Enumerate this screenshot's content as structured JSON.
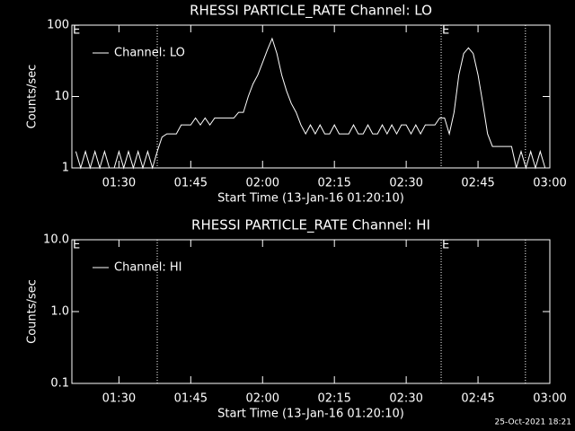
{
  "chart_data": [
    {
      "type": "line",
      "title": "RHESSI PARTICLE_RATE Channel: LO",
      "xlabel": "Start Time (13-Jan-16 01:20:10)",
      "ylabel": "Counts/sec",
      "log_y": true,
      "ylim": [
        1,
        100
      ],
      "yticks": [
        1,
        10,
        100
      ],
      "xlim": [
        80.17,
        180
      ],
      "xticks": [
        {
          "value": 90,
          "label": "01:30"
        },
        {
          "value": 105,
          "label": "01:45"
        },
        {
          "value": 120,
          "label": "02:00"
        },
        {
          "value": 135,
          "label": "02:15"
        },
        {
          "value": 150,
          "label": "02:30"
        },
        {
          "value": 165,
          "label": "02:45"
        },
        {
          "value": 180,
          "label": "03:00"
        }
      ],
      "vlines": [
        98.0,
        157.3,
        174.9
      ],
      "annotations": [
        {
          "x": 80.17,
          "text": "E"
        },
        {
          "x": 157.3,
          "text": "E"
        }
      ],
      "x": [
        81,
        82,
        83,
        84,
        85,
        86,
        87,
        88,
        89,
        90,
        91,
        92,
        93,
        94,
        95,
        96,
        97,
        98,
        99,
        100,
        101,
        102,
        103,
        104,
        105,
        106,
        107,
        108,
        109,
        110,
        111,
        112,
        113,
        114,
        115,
        116,
        117,
        118,
        119,
        120,
        121,
        122,
        123,
        124,
        125,
        126,
        127,
        128,
        129,
        130,
        131,
        132,
        133,
        134,
        135,
        136,
        137,
        138,
        139,
        140,
        141,
        142,
        143,
        144,
        145,
        146,
        147,
        148,
        149,
        150,
        151,
        152,
        153,
        154,
        155,
        156,
        157,
        158,
        159,
        160,
        161,
        162,
        163,
        164,
        165,
        166,
        167,
        168,
        169,
        170,
        171,
        172,
        173,
        174,
        175,
        176,
        177,
        178,
        179
      ],
      "series": [
        {
          "name": "Channel: LO",
          "color": "#ffffff",
          "values": [
            1.7,
            1,
            1.7,
            1,
            1.7,
            1,
            1.7,
            1,
            1,
            1.7,
            1,
            1.7,
            1,
            1.7,
            1,
            1.7,
            1,
            1.7,
            2.7,
            3,
            3,
            3,
            4,
            4,
            4,
            5,
            4,
            5,
            4,
            5,
            5,
            5,
            5,
            5,
            6,
            6,
            10,
            15,
            20,
            30,
            45,
            65,
            40,
            20,
            12,
            8,
            6,
            4,
            3,
            4,
            3,
            4,
            3,
            3,
            4,
            3,
            3,
            3,
            4,
            3,
            3,
            4,
            3,
            3,
            4,
            3,
            4,
            3,
            4,
            4,
            3,
            4,
            3,
            4,
            4,
            4,
            5,
            5,
            3,
            6,
            20,
            40,
            48,
            40,
            20,
            8,
            3,
            2,
            2,
            2,
            2,
            2,
            1,
            1.7,
            1,
            1.7,
            1,
            1.7,
            1
          ]
        }
      ]
    },
    {
      "type": "line",
      "title": "RHESSI PARTICLE_RATE Channel: HI",
      "xlabel": "Start Time (13-Jan-16 01:20:10)",
      "ylabel": "Counts/sec",
      "log_y": true,
      "ylim": [
        0.1,
        10
      ],
      "yticks": [
        0.1,
        {
          "value": 1,
          "label": "1.0"
        },
        {
          "value": 10,
          "label": "10.0"
        }
      ],
      "xlim": [
        80.17,
        180
      ],
      "xticks": [
        {
          "value": 90,
          "label": "01:30"
        },
        {
          "value": 105,
          "label": "01:45"
        },
        {
          "value": 120,
          "label": "02:00"
        },
        {
          "value": 135,
          "label": "02:15"
        },
        {
          "value": 150,
          "label": "02:30"
        },
        {
          "value": 165,
          "label": "02:45"
        },
        {
          "value": 180,
          "label": "03:00"
        }
      ],
      "vlines": [
        98.0,
        157.3,
        174.9
      ],
      "annotations": [
        {
          "x": 80.17,
          "text": "E"
        },
        {
          "x": 157.3,
          "text": "E"
        }
      ],
      "x": [],
      "series": [
        {
          "name": "Channel: HI",
          "color": "#ffffff",
          "values": []
        }
      ]
    }
  ],
  "footer": "25-Oct-2021 18:21"
}
